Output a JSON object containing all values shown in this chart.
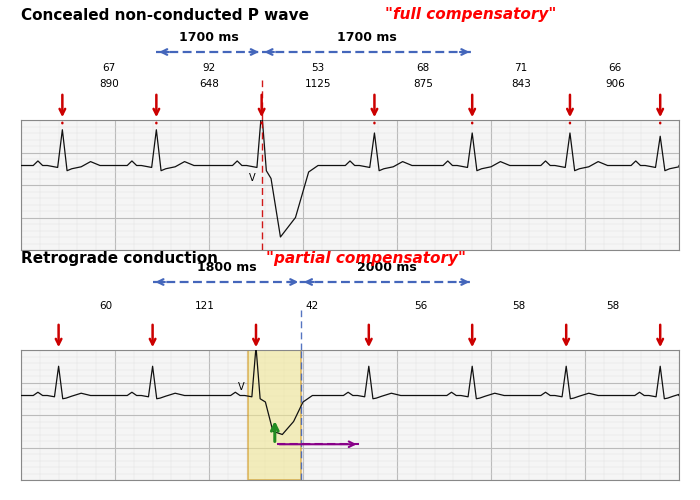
{
  "top_title1": "Concealed non-conducted P wave",
  "top_title2": "\"full compensatory\"",
  "bot_title1": "Retrograde conduction",
  "bot_title2": "\"partial compensatory\"",
  "top_arrow_label1": "1700 ms",
  "top_arrow_label2": "1700 ms",
  "bot_arrow_label1": "1800 ms",
  "bot_arrow_label2": "2000 ms",
  "top_beats": [
    67,
    92,
    53,
    68,
    71,
    66
  ],
  "top_intervals": [
    890,
    648,
    1125,
    875,
    843,
    906
  ],
  "bot_beats": [
    60,
    121,
    42,
    56,
    58,
    58
  ],
  "top_arrow_color": "#cc0000",
  "measure_arrow_color": "#4466bb",
  "retrograde_color": "#228B22",
  "purple_arrow_color": "#880088",
  "grid_minor_color": "#dddddd",
  "grid_major_color": "#bbbbbb",
  "ecg_color": "#111111",
  "highlight_color": "#f0e68c",
  "highlight_border": "#cc8800",
  "bg_color": "#ffffff"
}
